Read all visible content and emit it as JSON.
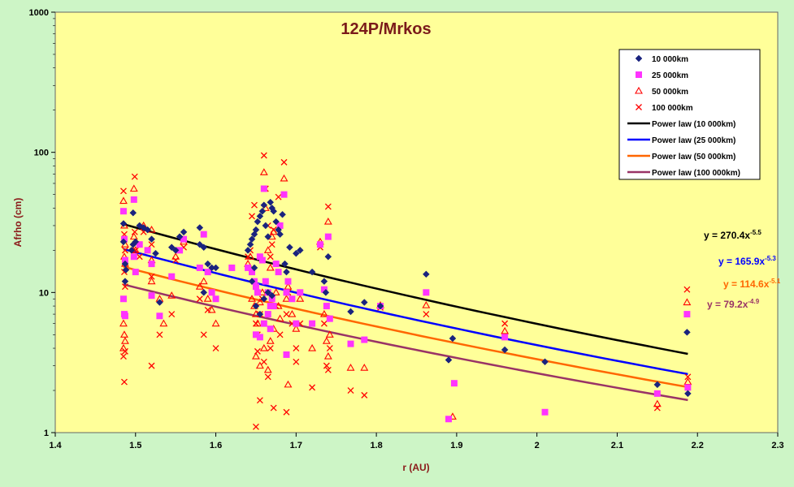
{
  "chart_data": {
    "type": "scatter",
    "title": "124P/Mrkos",
    "xlabel": "r (AU)",
    "ylabel": "Afrho (cm)",
    "xlim": [
      1.4,
      2.3
    ],
    "ylim": [
      1,
      1000
    ],
    "yscale": "log",
    "x_ticks": [
      "1.4",
      "1.5",
      "1.6",
      "1.7",
      "1.8",
      "1.9",
      "2",
      "2.1",
      "2.2",
      "2.3"
    ],
    "y_ticks": [
      "1",
      "10",
      "100",
      "1000"
    ],
    "grid": false,
    "legend_position": "top-right",
    "series": [
      {
        "name": "10 000km",
        "marker": "diamond",
        "color": "#1a237e",
        "points": [
          [
            1.485,
            31
          ],
          [
            1.485,
            23
          ],
          [
            1.487,
            16
          ],
          [
            1.488,
            14.5
          ],
          [
            1.487,
            12
          ],
          [
            1.497,
            37
          ],
          [
            1.497,
            22
          ],
          [
            1.495,
            20
          ],
          [
            1.5,
            23
          ],
          [
            1.505,
            30
          ],
          [
            1.51,
            29
          ],
          [
            1.515,
            28
          ],
          [
            1.52,
            24
          ],
          [
            1.525,
            19
          ],
          [
            1.53,
            8.5
          ],
          [
            1.545,
            21
          ],
          [
            1.55,
            20
          ],
          [
            1.555,
            25
          ],
          [
            1.56,
            27
          ],
          [
            1.58,
            29
          ],
          [
            1.58,
            22
          ],
          [
            1.585,
            21
          ],
          [
            1.59,
            16
          ],
          [
            1.595,
            15
          ],
          [
            1.6,
            15
          ],
          [
            1.585,
            10
          ],
          [
            1.64,
            20
          ],
          [
            1.643,
            22
          ],
          [
            1.645,
            24
          ],
          [
            1.648,
            26
          ],
          [
            1.65,
            28
          ],
          [
            1.652,
            32
          ],
          [
            1.655,
            35
          ],
          [
            1.658,
            38
          ],
          [
            1.66,
            42
          ],
          [
            1.662,
            30
          ],
          [
            1.665,
            25
          ],
          [
            1.668,
            44
          ],
          [
            1.67,
            40
          ],
          [
            1.672,
            38
          ],
          [
            1.675,
            32
          ],
          [
            1.678,
            28
          ],
          [
            1.68,
            26
          ],
          [
            1.683,
            36
          ],
          [
            1.686,
            16
          ],
          [
            1.688,
            14
          ],
          [
            1.692,
            21
          ],
          [
            1.7,
            19
          ],
          [
            1.705,
            20
          ],
          [
            1.72,
            14
          ],
          [
            1.735,
            12
          ],
          [
            1.74,
            18
          ],
          [
            1.737,
            10
          ],
          [
            1.768,
            7.3
          ],
          [
            1.785,
            8.5
          ],
          [
            1.805,
            8
          ],
          [
            1.862,
            13.5
          ],
          [
            1.89,
            3.3
          ],
          [
            1.895,
            4.7
          ],
          [
            1.96,
            3.9
          ],
          [
            2.01,
            3.2
          ],
          [
            2.15,
            2.2
          ],
          [
            2.187,
            5.2
          ],
          [
            2.188,
            1.9
          ],
          [
            1.65,
            8
          ],
          [
            1.655,
            7
          ],
          [
            1.66,
            9
          ],
          [
            1.665,
            10
          ],
          [
            1.645,
            12
          ],
          [
            1.648,
            15
          ],
          [
            1.67,
            9.5
          ]
        ]
      },
      {
        "name": "25 000km",
        "marker": "square",
        "color": "#ff33ff",
        "points": [
          [
            1.485,
            38
          ],
          [
            1.486,
            24
          ],
          [
            1.487,
            17
          ],
          [
            1.485,
            9
          ],
          [
            1.486,
            7
          ],
          [
            1.487,
            6.8
          ],
          [
            1.498,
            46
          ],
          [
            1.498,
            18
          ],
          [
            1.5,
            14
          ],
          [
            1.505,
            22
          ],
          [
            1.515,
            20
          ],
          [
            1.52,
            16
          ],
          [
            1.52,
            9.5
          ],
          [
            1.53,
            6.8
          ],
          [
            1.545,
            13
          ],
          [
            1.555,
            20
          ],
          [
            1.56,
            24
          ],
          [
            1.58,
            15
          ],
          [
            1.585,
            26
          ],
          [
            1.59,
            14
          ],
          [
            1.595,
            10
          ],
          [
            1.6,
            9
          ],
          [
            1.62,
            15
          ],
          [
            1.64,
            15
          ],
          [
            1.645,
            14
          ],
          [
            1.648,
            12
          ],
          [
            1.65,
            11
          ],
          [
            1.652,
            10
          ],
          [
            1.655,
            18
          ],
          [
            1.658,
            17
          ],
          [
            1.66,
            55
          ],
          [
            1.662,
            12
          ],
          [
            1.665,
            10
          ],
          [
            1.668,
            8
          ],
          [
            1.67,
            9
          ],
          [
            1.675,
            16
          ],
          [
            1.678,
            14
          ],
          [
            1.68,
            30
          ],
          [
            1.685,
            50
          ],
          [
            1.688,
            10
          ],
          [
            1.69,
            12
          ],
          [
            1.695,
            9
          ],
          [
            1.7,
            6
          ],
          [
            1.705,
            10
          ],
          [
            1.72,
            6
          ],
          [
            1.73,
            22
          ],
          [
            1.735,
            10.5
          ],
          [
            1.738,
            8
          ],
          [
            1.74,
            25
          ],
          [
            1.742,
            6.5
          ],
          [
            1.768,
            4.3
          ],
          [
            1.785,
            4.6
          ],
          [
            1.805,
            8
          ],
          [
            1.862,
            10
          ],
          [
            1.89,
            1.25
          ],
          [
            1.897,
            2.25
          ],
          [
            1.96,
            4.8
          ],
          [
            2.01,
            1.4
          ],
          [
            2.15,
            1.9
          ],
          [
            2.187,
            7
          ],
          [
            2.188,
            2.1
          ],
          [
            1.65,
            5
          ],
          [
            1.655,
            4.8
          ],
          [
            1.66,
            6
          ],
          [
            1.665,
            7
          ],
          [
            1.668,
            5.5
          ],
          [
            1.672,
            8
          ],
          [
            1.688,
            3.6
          ]
        ]
      },
      {
        "name": "50 000km",
        "marker": "triangle",
        "color": "#ff0000",
        "points": [
          [
            1.485,
            45
          ],
          [
            1.486,
            30
          ],
          [
            1.487,
            22
          ],
          [
            1.486,
            18
          ],
          [
            1.487,
            16
          ],
          [
            1.485,
            6
          ],
          [
            1.486,
            5
          ],
          [
            1.487,
            4.5
          ],
          [
            1.485,
            4
          ],
          [
            1.498,
            55
          ],
          [
            1.498,
            25
          ],
          [
            1.5,
            20
          ],
          [
            1.51,
            30
          ],
          [
            1.52,
            28
          ],
          [
            1.52,
            17
          ],
          [
            1.52,
            12
          ],
          [
            1.53,
            9
          ],
          [
            1.535,
            6
          ],
          [
            1.545,
            9.5
          ],
          [
            1.55,
            18
          ],
          [
            1.56,
            23
          ],
          [
            1.58,
            11
          ],
          [
            1.585,
            12
          ],
          [
            1.59,
            9
          ],
          [
            1.595,
            7.5
          ],
          [
            1.6,
            6
          ],
          [
            1.64,
            16
          ],
          [
            1.643,
            18
          ],
          [
            1.645,
            9
          ],
          [
            1.648,
            8
          ],
          [
            1.65,
            7
          ],
          [
            1.652,
            6
          ],
          [
            1.655,
            8.5
          ],
          [
            1.658,
            10
          ],
          [
            1.66,
            72
          ],
          [
            1.662,
            40
          ],
          [
            1.665,
            20
          ],
          [
            1.668,
            15
          ],
          [
            1.67,
            25
          ],
          [
            1.672,
            27
          ],
          [
            1.675,
            10
          ],
          [
            1.678,
            8
          ],
          [
            1.68,
            6.5
          ],
          [
            1.685,
            65
          ],
          [
            1.688,
            9
          ],
          [
            1.69,
            11
          ],
          [
            1.695,
            7
          ],
          [
            1.7,
            5.5
          ],
          [
            1.705,
            9
          ],
          [
            1.72,
            4
          ],
          [
            1.73,
            23
          ],
          [
            1.735,
            7
          ],
          [
            1.738,
            4.5
          ],
          [
            1.74,
            32
          ],
          [
            1.742,
            5
          ],
          [
            1.768,
            2.9
          ],
          [
            1.785,
            2.9
          ],
          [
            1.805,
            8.1
          ],
          [
            1.862,
            8.1
          ],
          [
            1.895,
            1.3
          ],
          [
            1.96,
            5.3
          ],
          [
            2.15,
            1.6
          ],
          [
            2.187,
            8.5
          ],
          [
            2.188,
            2.3
          ],
          [
            1.65,
            3.5
          ],
          [
            1.655,
            3
          ],
          [
            1.66,
            4
          ],
          [
            1.665,
            2.8
          ],
          [
            1.668,
            4.5
          ],
          [
            1.672,
            5.5
          ],
          [
            1.69,
            2.2
          ],
          [
            1.74,
            3.5
          ]
        ]
      },
      {
        "name": "100 000km",
        "marker": "x",
        "color": "#ff0000",
        "points": [
          [
            1.485,
            53
          ],
          [
            1.486,
            26
          ],
          [
            1.487,
            20
          ],
          [
            1.486,
            14
          ],
          [
            1.487,
            11
          ],
          [
            1.485,
            3.5
          ],
          [
            1.486,
            2.3
          ],
          [
            1.487,
            3.8
          ],
          [
            1.499,
            67
          ],
          [
            1.499,
            27
          ],
          [
            1.5,
            20
          ],
          [
            1.505,
            18
          ],
          [
            1.51,
            27
          ],
          [
            1.52,
            22
          ],
          [
            1.52,
            13
          ],
          [
            1.52,
            3
          ],
          [
            1.53,
            5
          ],
          [
            1.545,
            7
          ],
          [
            1.55,
            17
          ],
          [
            1.56,
            21
          ],
          [
            1.58,
            9
          ],
          [
            1.585,
            5
          ],
          [
            1.59,
            7.5
          ],
          [
            1.595,
            10
          ],
          [
            1.6,
            4
          ],
          [
            1.64,
            18
          ],
          [
            1.643,
            20
          ],
          [
            1.645,
            35
          ],
          [
            1.648,
            42
          ],
          [
            1.65,
            6
          ],
          [
            1.652,
            5
          ],
          [
            1.655,
            7
          ],
          [
            1.658,
            9
          ],
          [
            1.66,
            95
          ],
          [
            1.662,
            55
          ],
          [
            1.665,
            30
          ],
          [
            1.668,
            18
          ],
          [
            1.67,
            22
          ],
          [
            1.672,
            28
          ],
          [
            1.675,
            8
          ],
          [
            1.678,
            48
          ],
          [
            1.68,
            5
          ],
          [
            1.685,
            85
          ],
          [
            1.688,
            7
          ],
          [
            1.69,
            10
          ],
          [
            1.695,
            6
          ],
          [
            1.7,
            4
          ],
          [
            1.705,
            6
          ],
          [
            1.72,
            2.1
          ],
          [
            1.73,
            21
          ],
          [
            1.735,
            6
          ],
          [
            1.738,
            3
          ],
          [
            1.74,
            41
          ],
          [
            1.742,
            4
          ],
          [
            1.768,
            2
          ],
          [
            1.785,
            1.85
          ],
          [
            1.805,
            7.8
          ],
          [
            1.862,
            7
          ],
          [
            1.96,
            6
          ],
          [
            2.15,
            1.5
          ],
          [
            2.187,
            10.5
          ],
          [
            2.188,
            2.5
          ],
          [
            1.65,
            1.1
          ],
          [
            1.652,
            3.8
          ],
          [
            1.655,
            1.7
          ],
          [
            1.66,
            3.2
          ],
          [
            1.665,
            2.5
          ],
          [
            1.668,
            4
          ],
          [
            1.672,
            1.5
          ],
          [
            1.688,
            1.4
          ],
          [
            1.7,
            3.2
          ],
          [
            1.74,
            2.8
          ]
        ]
      }
    ],
    "trendlines": [
      {
        "name": "Power law (10 000km)",
        "color": "#000000",
        "coef": 270.4,
        "exp": -5.5,
        "equation": "y = 270.4x",
        "exponent_label": "-5.5",
        "equation_color": "#000000"
      },
      {
        "name": "Power law (25 000km)",
        "color": "#0000ff",
        "coef": 165.9,
        "exp": -5.3,
        "equation": "y = 165.9x",
        "exponent_label": "-5.3",
        "equation_color": "#0000ff"
      },
      {
        "name": "Power law (50 000km)",
        "color": "#ff6600",
        "coef": 114.6,
        "exp": -5.1,
        "equation": "y = 114.6x",
        "exponent_label": "-5.1",
        "equation_color": "#ff6600"
      },
      {
        "name": "Power law (100 000km)",
        "color": "#993366",
        "coef": 79.2,
        "exp": -4.9,
        "equation": "y = 79.2x",
        "exponent_label": "-4.9",
        "equation_color": "#993366"
      }
    ],
    "trend_x_range": [
      1.485,
      2.188
    ],
    "colors": {
      "plot_background": "#ffff99",
      "page_background": "#cdf5c6"
    }
  }
}
